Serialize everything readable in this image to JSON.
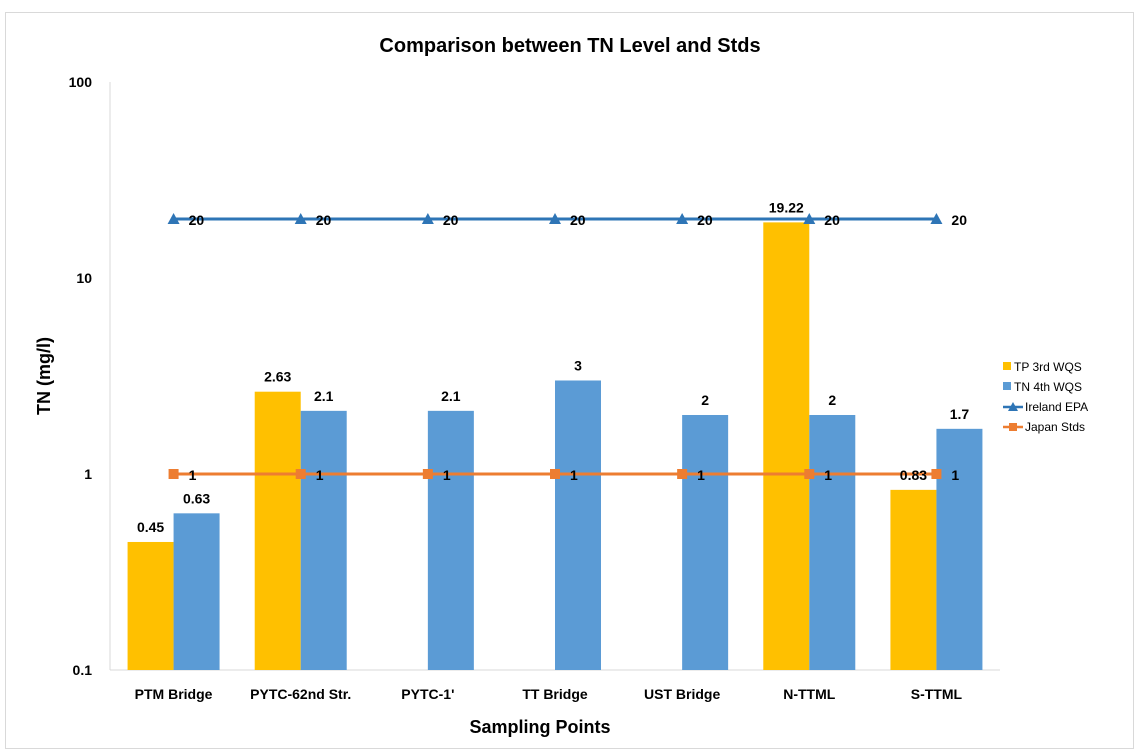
{
  "chart_data": {
    "type": "bar",
    "title": "Comparison between TN Level and Stds",
    "xlabel": "Sampling Points",
    "ylabel": "TN (mg/l)",
    "yscale": "log",
    "ylim": [
      0.1,
      100
    ],
    "yticks": [
      "0.1",
      "1",
      "10",
      "100"
    ],
    "categories": [
      "PTM Bridge",
      "PYTC-62nd Str.",
      "PYTC-1'",
      "TT Bridge",
      "UST Bridge",
      "N-TTML",
      "S-TTML"
    ],
    "series": [
      {
        "name": "TP 3rd WQS",
        "kind": "bar",
        "color": "#FFC000",
        "values": [
          0.45,
          2.63,
          null,
          null,
          null,
          19.22,
          0.83
        ],
        "labels": [
          "0.45",
          "2.63",
          null,
          null,
          null,
          "19.22",
          "0.83"
        ]
      },
      {
        "name": "TN 4th WQS",
        "kind": "bar",
        "color": "#5B9BD5",
        "values": [
          0.63,
          2.1,
          2.1,
          3,
          2,
          2,
          1.7
        ],
        "labels": [
          "0.63",
          "2.1",
          "2.1",
          "3",
          "2",
          "2",
          "1.7"
        ]
      },
      {
        "name": "Ireland EPA",
        "kind": "line",
        "marker": "triangle",
        "color": "#2E75B6",
        "values": [
          20,
          20,
          20,
          20,
          20,
          20,
          20
        ],
        "labels": [
          "20",
          "20",
          "20",
          "20",
          "20",
          "20",
          "20"
        ]
      },
      {
        "name": "Japan Stds",
        "kind": "line",
        "marker": "square",
        "color": "#ED7D31",
        "values": [
          1,
          1,
          1,
          1,
          1,
          1,
          1
        ],
        "labels": [
          "1",
          "1",
          "1",
          "1",
          "1",
          "1",
          "1"
        ]
      }
    ],
    "legend_position": "right",
    "grid": false
  }
}
